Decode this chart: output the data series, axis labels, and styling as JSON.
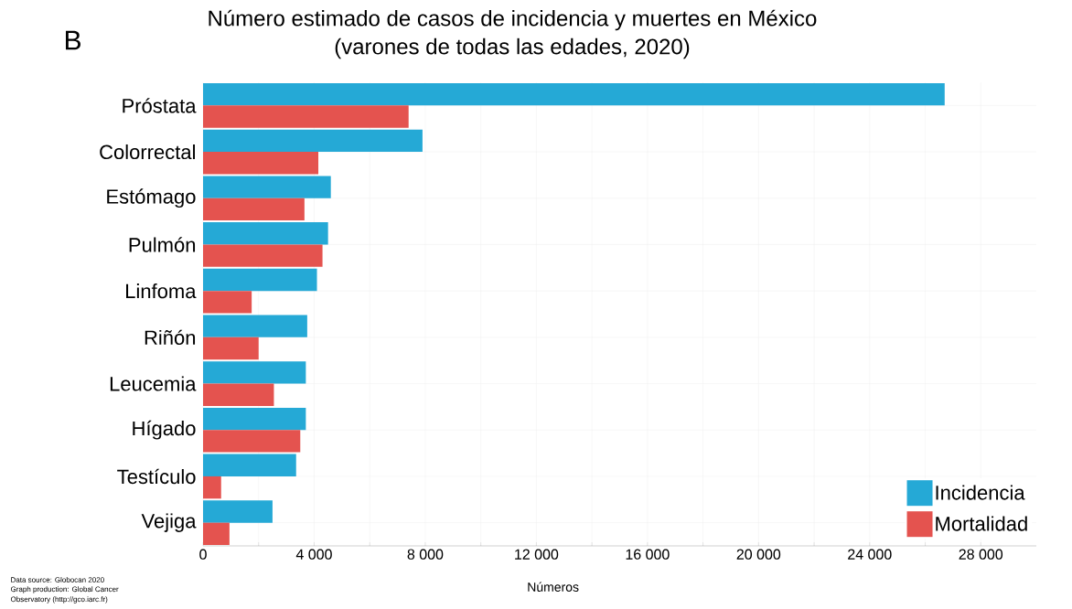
{
  "chart_data": {
    "type": "bar",
    "orientation": "horizontal",
    "title": "Número estimado de casos de incidencia y muertes en México",
    "subtitle": "(varones de todas las edades, 2020)",
    "xlabel": "Números",
    "categories": [
      "Próstata",
      "Colorrectal",
      "Estómago",
      "Pulmón",
      "Linfoma",
      "Riñón",
      "Leucemia",
      "Hígado",
      "Testículo",
      "Vejiga"
    ],
    "series": [
      {
        "name": "Incidencia",
        "color": "#25a9d6",
        "values": [
          26700,
          7900,
          4600,
          4500,
          4100,
          3750,
          3700,
          3700,
          3350,
          2500
        ]
      },
      {
        "name": "Mortalidad",
        "color": "#e4534f",
        "values": [
          7400,
          4150,
          3650,
          4300,
          1750,
          2000,
          2550,
          3500,
          650,
          950
        ]
      }
    ],
    "xlim": [
      0,
      30000
    ],
    "xticks": [
      0,
      {
        "value": 2000,
        "label": null
      },
      {
        "value": 4000,
        "label": "4 000"
      },
      {
        "value": 6000,
        "label": null
      },
      {
        "value": 8000,
        "label": "8 000"
      },
      {
        "value": 10000,
        "label": null
      },
      {
        "value": 12000,
        "label": "12 000"
      },
      {
        "value": 14000,
        "label": null
      },
      {
        "value": 16000,
        "label": "16 000"
      },
      {
        "value": 18000,
        "label": null
      },
      {
        "value": 20000,
        "label": "20 000"
      },
      {
        "value": 22000,
        "label": null
      },
      {
        "value": 24000,
        "label": "24 000"
      },
      {
        "value": 26000,
        "label": null
      },
      {
        "value": 28000,
        "label": "28 000"
      }
    ],
    "grid": true,
    "legend": "bottom right",
    "annotations": [
      "B",
      "Data source: Globocan 2020",
      "Graph production: Global Cancer",
      "Observatory (http://gco.iarc.fr)"
    ]
  }
}
